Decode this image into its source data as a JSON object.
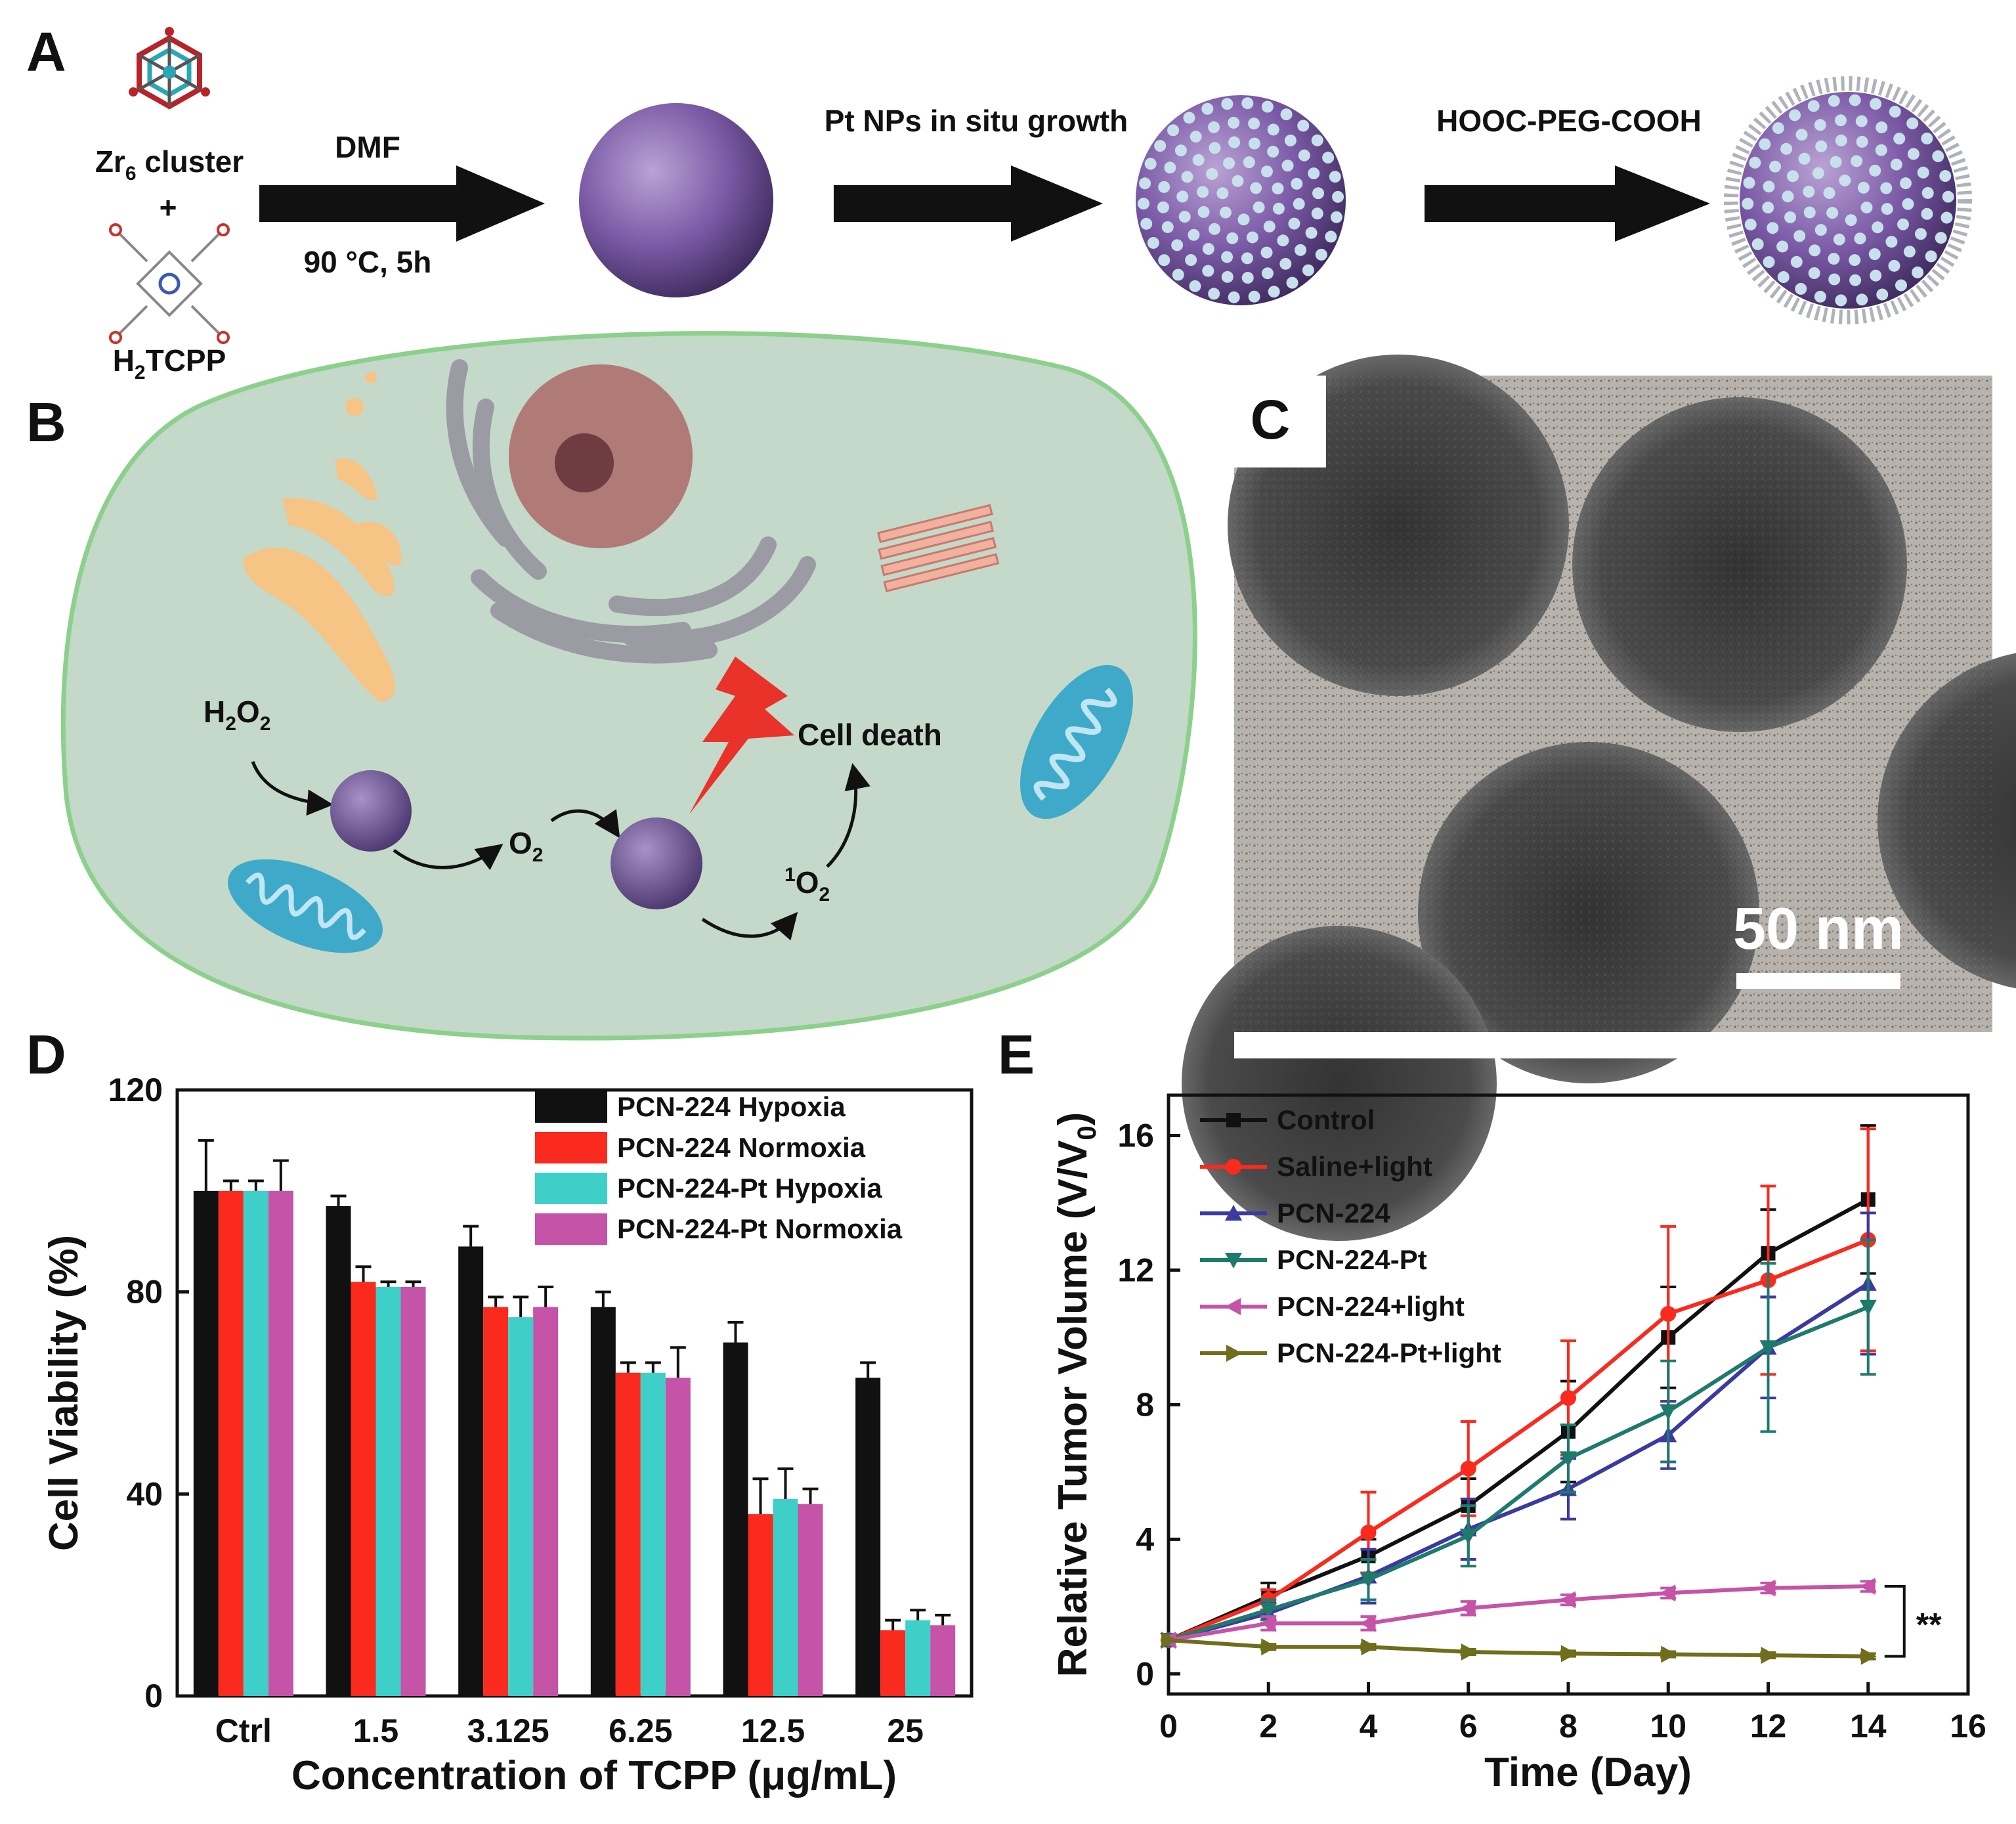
{
  "panels": {
    "A": {
      "label": "A",
      "zr_cluster": "Zr",
      "zr_sub": "6",
      "zr_suffix": " cluster",
      "plus": "+",
      "tcpp_h": "H",
      "tcpp_sub": "2",
      "tcpp_suffix": "TCPP",
      "step1_top": "DMF",
      "step1_bottom": "90 °C, 5h",
      "step2_top": "Pt NPs in situ growth",
      "step3_top": "HOOC-PEG-COOH"
    },
    "B": {
      "label": "B",
      "h2o2_h": "H",
      "h2o2_s1": "2",
      "h2o2_o": "O",
      "h2o2_s2": "2",
      "o2_o": "O",
      "o2_s": "2",
      "so_sup": "1",
      "so_o": "O",
      "so_s": "2",
      "cell_death": "Cell death"
    },
    "C": {
      "label": "C",
      "scale_bar": "50 nm"
    },
    "D": {
      "label": "D"
    },
    "E": {
      "label": "E",
      "significance": "**"
    }
  },
  "colors": {
    "nanoparticle": "#7b5aa6",
    "pt_dots": "#c8e0ec",
    "cell_fill": "#c4d9c9",
    "cell_border": "#8cd08c",
    "bolt": "#e8322a",
    "mitochondria": "#3fa9c9",
    "golgi": "#f6c485",
    "er": "#9b9ba3",
    "nucleus": "#b07a77"
  },
  "chart_data": [
    {
      "type": "bar",
      "panel": "D",
      "categories": [
        "Ctrl",
        "1.5",
        "3.125",
        "6.25",
        "12.5",
        "25"
      ],
      "xlabel": "Concentration of TCPP (μg/mL)",
      "ylabel": "Cell Viability (%)",
      "ylim": [
        0,
        120
      ],
      "yticks": [
        "0",
        "40",
        "80",
        "120"
      ],
      "legend_position": "top-right",
      "series": [
        {
          "name": "PCN-224 Hypoxia",
          "color": "#111111",
          "values": [
            100,
            97,
            89,
            77,
            70,
            63
          ],
          "errors": [
            10,
            2,
            4,
            3,
            4,
            3
          ]
        },
        {
          "name": "PCN-224 Normoxia",
          "color": "#fb2a1e",
          "values": [
            100,
            82,
            77,
            64,
            36,
            13
          ],
          "errors": [
            2,
            3,
            2,
            2,
            7,
            2
          ]
        },
        {
          "name": "PCN-224-Pt Hypoxia",
          "color": "#3ecfc9",
          "values": [
            100,
            81,
            75,
            64,
            39,
            15
          ],
          "errors": [
            2,
            1,
            4,
            2,
            6,
            2
          ]
        },
        {
          "name": "PCN-224-Pt Normoxia",
          "color": "#c553a8",
          "values": [
            100,
            81,
            77,
            63,
            38,
            14
          ],
          "errors": [
            6,
            1,
            4,
            6,
            3,
            2
          ]
        }
      ]
    },
    {
      "type": "line",
      "panel": "E",
      "x": [
        0,
        2,
        4,
        6,
        8,
        10,
        12,
        14
      ],
      "xlabel": "Time (Day)",
      "ylabel_main": "Relative Tumor Volume (V/V",
      "ylabel_sub": "0",
      "ylabel_close": ")",
      "xlim": [
        0,
        16
      ],
      "ylim": [
        -0.6,
        17.2
      ],
      "xticks": [
        "0",
        "2",
        "4",
        "6",
        "8",
        "10",
        "12",
        "14",
        "16"
      ],
      "yticks": [
        "0",
        "4",
        "8",
        "12",
        "16"
      ],
      "legend_position": "top-left",
      "series": [
        {
          "name": "Control",
          "color": "#111111",
          "marker": "square",
          "values": [
            1,
            2.3,
            3.5,
            5.0,
            7.2,
            10.0,
            12.5,
            14.1
          ],
          "errors": [
            0,
            0.4,
            0.5,
            0.8,
            1.5,
            1.5,
            1.3,
            2.2
          ]
        },
        {
          "name": "Saline+light",
          "color": "#fb2a1e",
          "marker": "circle",
          "values": [
            1,
            2.2,
            4.2,
            6.1,
            8.2,
            10.7,
            11.7,
            12.9
          ],
          "errors": [
            0,
            0.3,
            1.2,
            1.4,
            1.7,
            2.6,
            2.8,
            3.3
          ]
        },
        {
          "name": "PCN-224",
          "color": "#3b3aa0",
          "marker": "triangle-up",
          "values": [
            1,
            1.8,
            2.9,
            4.3,
            5.5,
            7.1,
            9.7,
            11.6
          ],
          "errors": [
            0,
            0.3,
            0.8,
            0.9,
            0.9,
            1.0,
            1.5,
            2.1
          ]
        },
        {
          "name": "PCN-224-Pt",
          "color": "#1f7a6c",
          "marker": "triangle-down",
          "values": [
            1,
            1.9,
            2.8,
            4.1,
            6.4,
            7.8,
            9.7,
            10.9
          ],
          "errors": [
            0,
            0.3,
            0.6,
            0.9,
            1.0,
            1.5,
            2.5,
            2.0
          ]
        },
        {
          "name": "PCN-224+light",
          "color": "#c553a8",
          "marker": "triangle-left",
          "values": [
            1,
            1.5,
            1.5,
            1.95,
            2.2,
            2.4,
            2.55,
            2.6
          ],
          "errors": [
            0,
            0.2,
            0.2,
            0.2,
            0.15,
            0.15,
            0.15,
            0.15
          ]
        },
        {
          "name": "PCN-224-Pt+light",
          "color": "#6e6e1c",
          "marker": "triangle-right",
          "values": [
            1,
            0.8,
            0.8,
            0.65,
            0.6,
            0.58,
            0.55,
            0.52
          ],
          "errors": [
            0,
            0.08,
            0.08,
            0.08,
            0.08,
            0.08,
            0.08,
            0.08
          ]
        }
      ]
    }
  ]
}
